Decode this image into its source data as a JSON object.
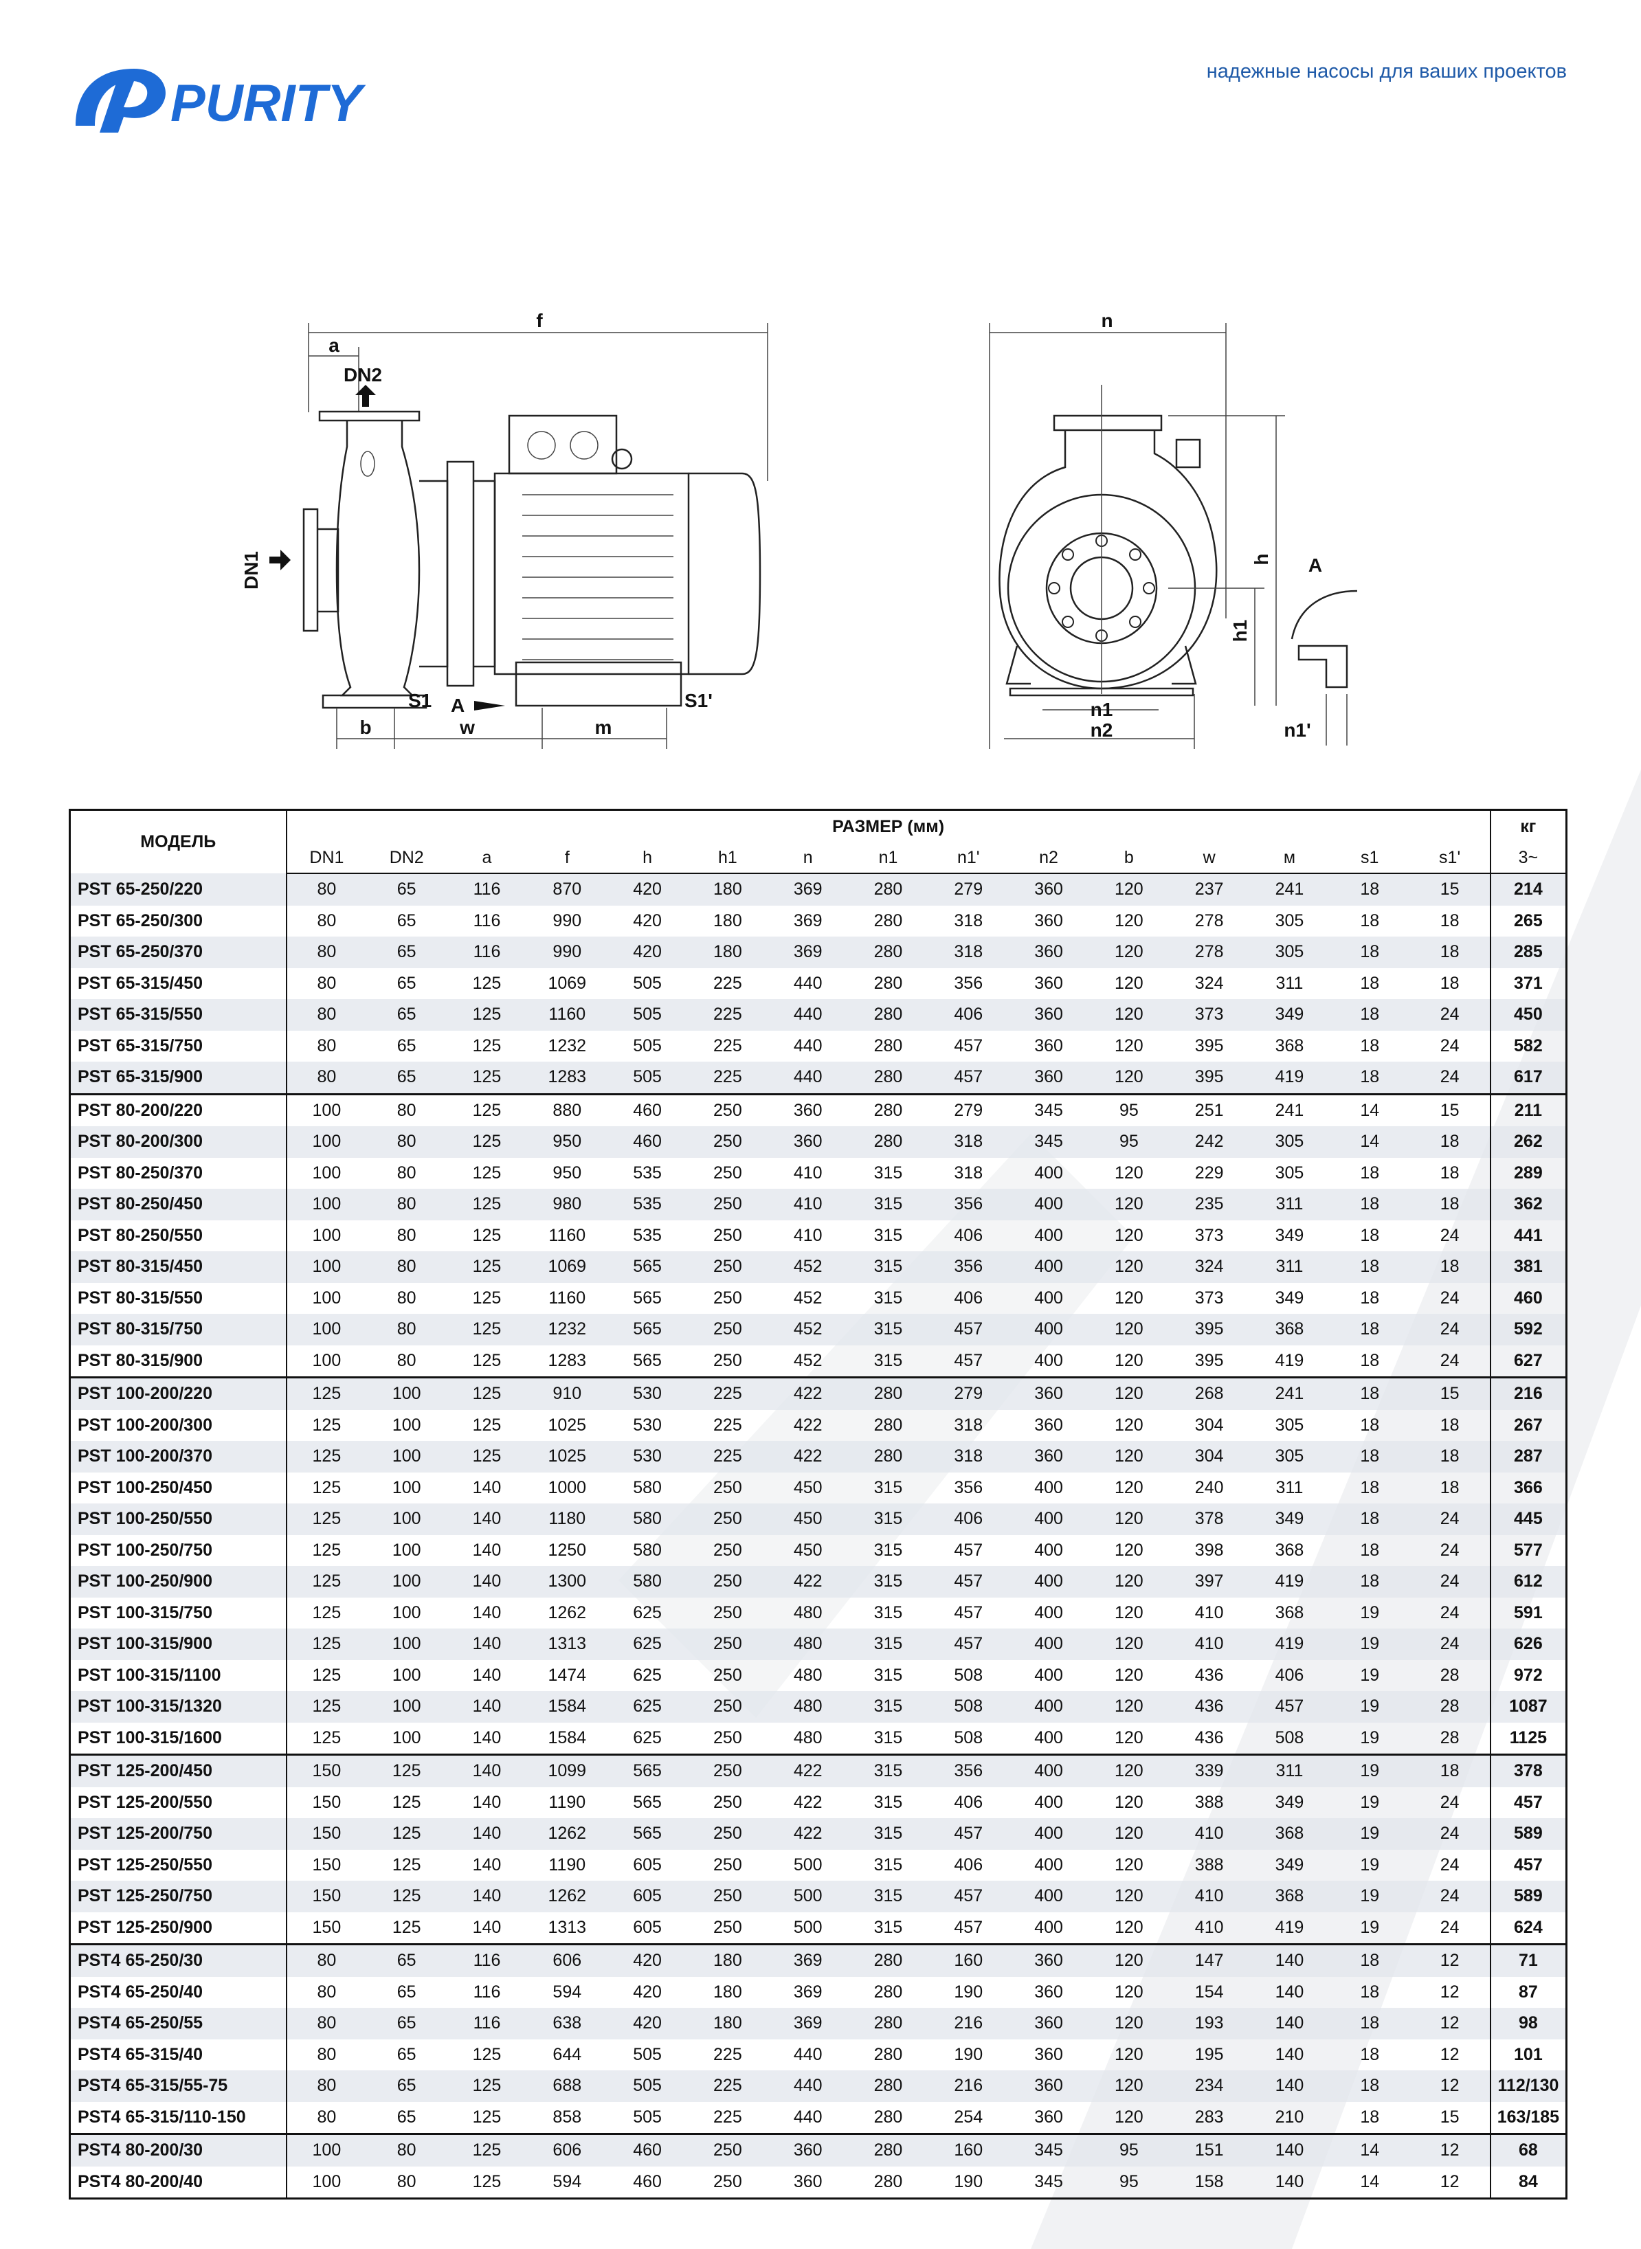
{
  "header": {
    "logo": "PURITY",
    "tagline": "надежные насосы для ваших проектов"
  },
  "drawing": {
    "side_labels": [
      "f",
      "a",
      "DN2",
      "DN1",
      "S1",
      "A",
      "S1'",
      "b",
      "w",
      "m"
    ],
    "front_labels": [
      "n",
      "h",
      "h1",
      "A",
      "n1",
      "n2",
      "n1'"
    ]
  },
  "table": {
    "model_header": "МОДЕЛЬ",
    "size_header": "РАЗМЕР (мм)",
    "weight_header": "кг",
    "columns": [
      "DN1",
      "DN2",
      "a",
      "f",
      "h",
      "h1",
      "n",
      "n1",
      "n1'",
      "n2",
      "b",
      "w",
      "м",
      "s1",
      "s1'"
    ],
    "weight_unit": "3~",
    "groups": [
      [
        [
          "PST 65-250/220",
          80,
          65,
          116,
          870,
          420,
          180,
          369,
          280,
          279,
          360,
          120,
          237,
          241,
          18,
          15,
          214
        ],
        [
          "PST 65-250/300",
          80,
          65,
          116,
          990,
          420,
          180,
          369,
          280,
          318,
          360,
          120,
          278,
          305,
          18,
          18,
          265
        ],
        [
          "PST 65-250/370",
          80,
          65,
          116,
          990,
          420,
          180,
          369,
          280,
          318,
          360,
          120,
          278,
          305,
          18,
          18,
          285
        ],
        [
          "PST 65-315/450",
          80,
          65,
          125,
          1069,
          505,
          225,
          440,
          280,
          356,
          360,
          120,
          324,
          311,
          18,
          18,
          371
        ],
        [
          "PST 65-315/550",
          80,
          65,
          125,
          1160,
          505,
          225,
          440,
          280,
          406,
          360,
          120,
          373,
          349,
          18,
          24,
          450
        ],
        [
          "PST 65-315/750",
          80,
          65,
          125,
          1232,
          505,
          225,
          440,
          280,
          457,
          360,
          120,
          395,
          368,
          18,
          24,
          582
        ],
        [
          "PST 65-315/900",
          80,
          65,
          125,
          1283,
          505,
          225,
          440,
          280,
          457,
          360,
          120,
          395,
          419,
          18,
          24,
          617
        ]
      ],
      [
        [
          "PST 80-200/220",
          100,
          80,
          125,
          880,
          460,
          250,
          360,
          280,
          279,
          345,
          95,
          251,
          241,
          14,
          15,
          211
        ],
        [
          "PST 80-200/300",
          100,
          80,
          125,
          950,
          460,
          250,
          360,
          280,
          318,
          345,
          95,
          242,
          305,
          14,
          18,
          262
        ],
        [
          "PST 80-250/370",
          100,
          80,
          125,
          950,
          535,
          250,
          410,
          315,
          318,
          400,
          120,
          229,
          305,
          18,
          18,
          289
        ],
        [
          "PST 80-250/450",
          100,
          80,
          125,
          980,
          535,
          250,
          410,
          315,
          356,
          400,
          120,
          235,
          311,
          18,
          18,
          362
        ],
        [
          "PST 80-250/550",
          100,
          80,
          125,
          1160,
          535,
          250,
          410,
          315,
          406,
          400,
          120,
          373,
          349,
          18,
          24,
          441
        ],
        [
          "PST 80-315/450",
          100,
          80,
          125,
          1069,
          565,
          250,
          452,
          315,
          356,
          400,
          120,
          324,
          311,
          18,
          18,
          381
        ],
        [
          "PST 80-315/550",
          100,
          80,
          125,
          1160,
          565,
          250,
          452,
          315,
          406,
          400,
          120,
          373,
          349,
          18,
          24,
          460
        ],
        [
          "PST 80-315/750",
          100,
          80,
          125,
          1232,
          565,
          250,
          452,
          315,
          457,
          400,
          120,
          395,
          368,
          18,
          24,
          592
        ],
        [
          "PST 80-315/900",
          100,
          80,
          125,
          1283,
          565,
          250,
          452,
          315,
          457,
          400,
          120,
          395,
          419,
          18,
          24,
          627
        ]
      ],
      [
        [
          "PST 100-200/220",
          125,
          100,
          125,
          910,
          530,
          225,
          422,
          280,
          279,
          360,
          120,
          268,
          241,
          18,
          15,
          216
        ],
        [
          "PST 100-200/300",
          125,
          100,
          125,
          1025,
          530,
          225,
          422,
          280,
          318,
          360,
          120,
          304,
          305,
          18,
          18,
          267
        ],
        [
          "PST 100-200/370",
          125,
          100,
          125,
          1025,
          530,
          225,
          422,
          280,
          318,
          360,
          120,
          304,
          305,
          18,
          18,
          287
        ],
        [
          "PST 100-250/450",
          125,
          100,
          140,
          1000,
          580,
          250,
          450,
          315,
          356,
          400,
          120,
          240,
          311,
          18,
          18,
          366
        ],
        [
          "PST 100-250/550",
          125,
          100,
          140,
          1180,
          580,
          250,
          450,
          315,
          406,
          400,
          120,
          378,
          349,
          18,
          24,
          445
        ],
        [
          "PST 100-250/750",
          125,
          100,
          140,
          1250,
          580,
          250,
          450,
          315,
          457,
          400,
          120,
          398,
          368,
          18,
          24,
          577
        ],
        [
          "PST 100-250/900",
          125,
          100,
          140,
          1300,
          580,
          250,
          422,
          315,
          457,
          400,
          120,
          397,
          419,
          18,
          24,
          612
        ],
        [
          "PST 100-315/750",
          125,
          100,
          140,
          1262,
          625,
          250,
          480,
          315,
          457,
          400,
          120,
          410,
          368,
          19,
          24,
          591
        ],
        [
          "PST 100-315/900",
          125,
          100,
          140,
          1313,
          625,
          250,
          480,
          315,
          457,
          400,
          120,
          410,
          419,
          19,
          24,
          626
        ],
        [
          "PST 100-315/1100",
          125,
          100,
          140,
          1474,
          625,
          250,
          480,
          315,
          508,
          400,
          120,
          436,
          406,
          19,
          28,
          972
        ],
        [
          "PST 100-315/1320",
          125,
          100,
          140,
          1584,
          625,
          250,
          480,
          315,
          508,
          400,
          120,
          436,
          457,
          19,
          28,
          1087
        ],
        [
          "PST 100-315/1600",
          125,
          100,
          140,
          1584,
          625,
          250,
          480,
          315,
          508,
          400,
          120,
          436,
          508,
          19,
          28,
          1125
        ]
      ],
      [
        [
          "PST 125-200/450",
          150,
          125,
          140,
          1099,
          565,
          250,
          422,
          315,
          356,
          400,
          120,
          339,
          311,
          19,
          18,
          378
        ],
        [
          "PST 125-200/550",
          150,
          125,
          140,
          1190,
          565,
          250,
          422,
          315,
          406,
          400,
          120,
          388,
          349,
          19,
          24,
          457
        ],
        [
          "PST 125-200/750",
          150,
          125,
          140,
          1262,
          565,
          250,
          422,
          315,
          457,
          400,
          120,
          410,
          368,
          19,
          24,
          589
        ],
        [
          "PST 125-250/550",
          150,
          125,
          140,
          1190,
          605,
          250,
          500,
          315,
          406,
          400,
          120,
          388,
          349,
          19,
          24,
          457
        ],
        [
          "PST 125-250/750",
          150,
          125,
          140,
          1262,
          605,
          250,
          500,
          315,
          457,
          400,
          120,
          410,
          368,
          19,
          24,
          589
        ],
        [
          "PST 125-250/900",
          150,
          125,
          140,
          1313,
          605,
          250,
          500,
          315,
          457,
          400,
          120,
          410,
          419,
          19,
          24,
          624
        ]
      ],
      [
        [
          "PST4 65-250/30",
          80,
          65,
          116,
          606,
          420,
          180,
          369,
          280,
          160,
          360,
          120,
          147,
          140,
          18,
          12,
          71
        ],
        [
          "PST4 65-250/40",
          80,
          65,
          116,
          594,
          420,
          180,
          369,
          280,
          190,
          360,
          120,
          154,
          140,
          18,
          12,
          87
        ],
        [
          "PST4 65-250/55",
          80,
          65,
          116,
          638,
          420,
          180,
          369,
          280,
          216,
          360,
          120,
          193,
          140,
          18,
          12,
          98
        ],
        [
          "PST4 65-315/40",
          80,
          65,
          125,
          644,
          505,
          225,
          440,
          280,
          190,
          360,
          120,
          195,
          140,
          18,
          12,
          101
        ],
        [
          "PST4 65-315/55-75",
          80,
          65,
          125,
          688,
          505,
          225,
          440,
          280,
          216,
          360,
          120,
          234,
          140,
          18,
          12,
          "112/130"
        ],
        [
          "PST4 65-315/110-150",
          80,
          65,
          125,
          858,
          505,
          225,
          440,
          280,
          254,
          360,
          120,
          283,
          210,
          18,
          15,
          "163/185"
        ]
      ],
      [
        [
          "PST4 80-200/30",
          100,
          80,
          125,
          606,
          460,
          250,
          360,
          280,
          160,
          345,
          95,
          151,
          140,
          14,
          12,
          68
        ],
        [
          "PST4 80-200/40",
          100,
          80,
          125,
          594,
          460,
          250,
          360,
          280,
          190,
          345,
          95,
          158,
          140,
          14,
          12,
          84
        ]
      ]
    ]
  }
}
